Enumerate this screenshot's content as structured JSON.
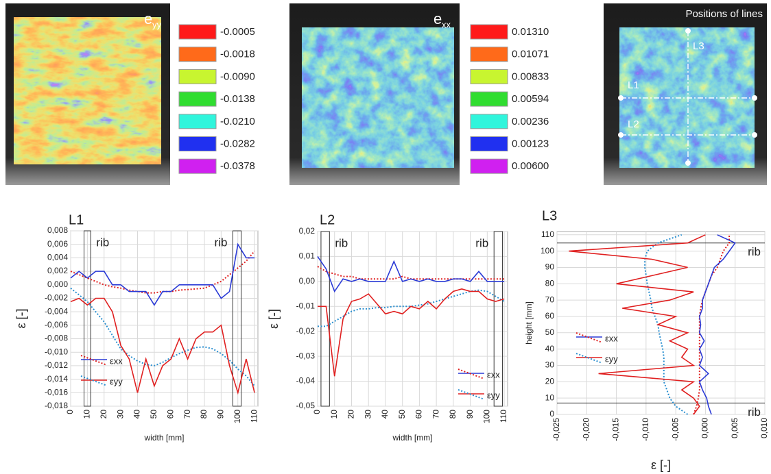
{
  "maps": [
    {
      "title": "e",
      "title_sub": "yy",
      "legend": {
        "colors": [
          "#ff1a1a",
          "#ff6a1a",
          "#c8f530",
          "#30dd30",
          "#30f5dc",
          "#2030f0",
          "#d020f0"
        ],
        "values": [
          -0.0005,
          -0.0018,
          {
            "value": -0.009,
            "label": "-0.0090"
          },
          -0.0138,
          {
            "value": -0.021,
            "label": "-0.0210"
          },
          -0.0282,
          -0.0378
        ]
      }
    },
    {
      "title": "e",
      "title_sub": "xx",
      "legend": {
        "colors": [
          "#ff1a1a",
          "#ff6a1a",
          "#c8f530",
          "#30dd30",
          "#30f5dc",
          "#2030f0",
          "#d020f0"
        ],
        "values": [
          {
            "value": 0.0131,
            "label": "0.01310"
          },
          0.01071,
          0.00833,
          0.00594,
          0.00236,
          0.00123,
          {
            "value": 0.006,
            "label": "0.00600"
          }
        ]
      }
    },
    {
      "title": "Positions of lines",
      "line_labels": [
        "L1",
        "L2",
        "L3"
      ]
    }
  ],
  "chart_data": [
    {
      "type": "line",
      "title": "L1",
      "x_label": "width [mm]",
      "y_label": "ε [-]",
      "grid": true,
      "x": [
        0,
        5,
        10,
        15,
        20,
        25,
        30,
        35,
        40,
        45,
        50,
        55,
        60,
        65,
        70,
        75,
        80,
        85,
        90,
        95,
        100,
        105,
        110
      ],
      "xlim": [
        0,
        112
      ],
      "xticks": [
        0,
        10,
        20,
        30,
        40,
        50,
        60,
        70,
        80,
        90,
        100,
        110
      ],
      "ylim": [
        -0.018,
        0.008
      ],
      "yticks": [
        {
          "value": 0.008,
          "label": "0,008"
        },
        {
          "value": 0.006,
          "label": "0,006"
        },
        {
          "value": 0.004,
          "label": "0,004"
        },
        {
          "value": 0.002,
          "label": "0,002"
        },
        {
          "value": 0,
          "label": "0,000"
        },
        {
          "value": -0.002,
          "label": "-0,002"
        },
        {
          "value": -0.004,
          "label": "-0,004"
        },
        {
          "value": -0.006,
          "label": "-0,006"
        },
        {
          "value": -0.008,
          "label": "-0,008"
        },
        {
          "value": -0.01,
          "label": "-0,010"
        },
        {
          "value": -0.012,
          "label": "-0,012"
        },
        {
          "value": -0.014,
          "label": "-0,014"
        },
        {
          "value": -0.016,
          "label": "-0,016"
        },
        {
          "value": -0.018,
          "label": "-0,018"
        }
      ],
      "ribs": [
        [
          8,
          12
        ],
        [
          97,
          102
        ]
      ],
      "annotations": [
        "rib",
        "rib"
      ],
      "series": [
        {
          "name": "εxx",
          "color": "#2b3bd6",
          "dotted_color": "#e02020",
          "values": [
            0.001,
            0.002,
            0.001,
            0.002,
            0.002,
            0,
            0,
            -0.001,
            -0.001,
            -0.001,
            -0.003,
            -0.001,
            -0.001,
            0,
            0,
            0,
            0,
            0,
            -0.002,
            -0.001,
            0.006,
            0.004,
            0.004
          ],
          "dotted_values": [
            0.002,
            0.0015,
            0.001,
            0.0005,
            0,
            -0.0003,
            -0.0005,
            -0.0008,
            -0.001,
            -0.0012,
            -0.0012,
            -0.001,
            -0.001,
            -0.0008,
            -0.0007,
            -0.0006,
            -0.0005,
            0,
            0.0005,
            0.0015,
            0.0025,
            0.0035,
            0.005
          ]
        },
        {
          "name": "εyy",
          "color": "#e02020",
          "dotted_color": "#2a8fd0",
          "values": [
            -0.0025,
            -0.002,
            -0.003,
            -0.002,
            -0.002,
            -0.004,
            -0.009,
            -0.011,
            -0.016,
            -0.011,
            -0.015,
            -0.012,
            -0.011,
            -0.008,
            -0.011,
            -0.008,
            -0.007,
            -0.007,
            -0.006,
            -0.012,
            -0.016,
            -0.011,
            -0.016
          ],
          "dotted_values": [
            -0.0005,
            -0.0015,
            -0.0025,
            -0.004,
            -0.0055,
            -0.0075,
            -0.0095,
            -0.0105,
            -0.0113,
            -0.0118,
            -0.012,
            -0.0115,
            -0.0108,
            -0.0102,
            -0.0097,
            -0.0093,
            -0.0092,
            -0.0095,
            -0.0102,
            -0.0112,
            -0.0125,
            -0.0135,
            -0.015
          ]
        }
      ]
    },
    {
      "type": "line",
      "title": "L2",
      "x_label": "width [mm]",
      "y_label": "ε [-]",
      "grid": true,
      "x": [
        0,
        5,
        10,
        15,
        20,
        25,
        30,
        35,
        40,
        45,
        50,
        55,
        60,
        65,
        70,
        75,
        80,
        85,
        90,
        95,
        100,
        105,
        110
      ],
      "xlim": [
        0,
        112
      ],
      "xticks": [
        0,
        10,
        20,
        30,
        40,
        50,
        60,
        70,
        80,
        90,
        100,
        110
      ],
      "ylim": [
        -0.05,
        0.02
      ],
      "yticks": [
        {
          "value": 0.02,
          "label": "0,02"
        },
        {
          "value": 0.01,
          "label": "0,01"
        },
        {
          "value": 0,
          "label": "0,00"
        },
        {
          "value": -0.01,
          "label": "-0,01"
        },
        {
          "value": -0.02,
          "label": "-0,02"
        },
        {
          "value": -0.03,
          "label": "-0,03"
        },
        {
          "value": -0.04,
          "label": "-0,04"
        },
        {
          "value": -0.05,
          "label": "-0,05"
        }
      ],
      "ribs": [
        [
          2,
          7
        ],
        [
          104,
          109
        ]
      ],
      "annotations": [
        "rib",
        "rib"
      ],
      "series": [
        {
          "name": "εxx",
          "color": "#2b3bd6",
          "dotted_color": "#e02020",
          "values": [
            0.01,
            0.005,
            -0.004,
            0.001,
            0,
            0.001,
            0,
            0,
            0,
            0.008,
            0,
            0.001,
            0,
            0.001,
            0,
            0,
            0.001,
            0.001,
            0,
            0.004,
            0,
            0,
            0
          ],
          "dotted_values": [
            0.006,
            0.004,
            0.003,
            0.002,
            0.002,
            0.001,
            0.001,
            0.001,
            0.001,
            0.001,
            0.002,
            0.001,
            0.001,
            0.001,
            0.001,
            0.001,
            0.001,
            0.001,
            0.001,
            0.001,
            0.001,
            0.001,
            0.001
          ]
        },
        {
          "name": "εyy",
          "color": "#e02020",
          "dotted_color": "#2a8fd0",
          "values": [
            -0.01,
            -0.01,
            -0.038,
            -0.015,
            -0.008,
            -0.007,
            -0.005,
            -0.009,
            -0.013,
            -0.012,
            -0.013,
            -0.01,
            -0.011,
            -0.008,
            -0.011,
            -0.007,
            -0.004,
            -0.003,
            -0.004,
            -0.004,
            -0.007,
            -0.008,
            -0.007
          ],
          "dotted_values": [
            -0.018,
            -0.018,
            -0.016,
            -0.014,
            -0.012,
            -0.011,
            -0.011,
            -0.0105,
            -0.0105,
            -0.01,
            -0.01,
            -0.01,
            -0.0095,
            -0.009,
            -0.008,
            -0.007,
            -0.006,
            -0.005,
            -0.004,
            -0.0035,
            -0.004,
            -0.006,
            -0.008
          ]
        }
      ]
    },
    {
      "type": "line",
      "title": "L3",
      "x_label": "ε [-]",
      "y_label": "height [mm]",
      "grid": true,
      "y": [
        0,
        5,
        10,
        15,
        20,
        25,
        30,
        35,
        40,
        45,
        50,
        55,
        60,
        65,
        70,
        75,
        80,
        85,
        90,
        95,
        100,
        105,
        110
      ],
      "ylim": [
        0,
        112
      ],
      "yticks": [
        0,
        10,
        20,
        30,
        40,
        50,
        60,
        70,
        80,
        90,
        100,
        110
      ],
      "xlim": [
        -0.025,
        0.01
      ],
      "xticks": [
        {
          "value": -0.025,
          "label": "-0,025"
        },
        {
          "value": -0.02,
          "label": "-0,020"
        },
        {
          "value": -0.015,
          "label": "-0,015"
        },
        {
          "value": -0.01,
          "label": "-0,010"
        },
        {
          "value": -0.005,
          "label": "-0,005"
        },
        {
          "value": 0,
          "label": "0,000"
        },
        {
          "value": 0.005,
          "label": "0,005"
        },
        {
          "value": 0.01,
          "label": "0,010"
        }
      ],
      "rib_lines": [
        105,
        7
      ],
      "annotations": [
        "rib",
        "rib"
      ],
      "series": [
        {
          "name": "εxx",
          "color": "#2b3bd6",
          "dotted_color": "#e02020",
          "values": [
            0.001,
            0.0005,
            0.0002,
            -0.0005,
            -0.001,
            0.0005,
            -0.001,
            -0.0005,
            -0.001,
            -0.0002,
            -0.001,
            -0.0008,
            -0.001,
            -0.0005,
            -0.0005,
            0,
            0.0005,
            0.001,
            0.0015,
            0.003,
            0.004,
            0.005,
            0.002
          ],
          "dotted_values": [
            -0.002,
            -0.0015,
            -0.0012,
            -0.001,
            -0.001,
            -0.001,
            -0.001,
            -0.001,
            -0.001,
            -0.001,
            -0.001,
            -0.001,
            -0.001,
            -0.0008,
            -0.0005,
            0,
            0.0005,
            0.001,
            0.002,
            0.0025,
            0.003,
            0.004,
            0.004
          ]
        },
        {
          "name": "εyy",
          "color": "#e02020",
          "dotted_color": "#2a8fd0",
          "values": [
            -0.002,
            -0.001,
            -0.002,
            -0.004,
            -0.002,
            -0.018,
            -0.002,
            -0.004,
            -0.003,
            -0.006,
            -0.003,
            -0.008,
            -0.005,
            -0.014,
            -0.006,
            -0.002,
            -0.015,
            -0.009,
            -0.003,
            -0.009,
            -0.023,
            -0.003,
            0
          ],
          "dotted_values": [
            -0.003,
            -0.005,
            -0.006,
            -0.0065,
            -0.007,
            -0.007,
            -0.007,
            -0.007,
            -0.0072,
            -0.0075,
            -0.0078,
            -0.008,
            -0.0085,
            -0.009,
            -0.0092,
            -0.0095,
            -0.0098,
            -0.01,
            -0.0102,
            -0.0102,
            -0.0098,
            -0.008,
            -0.004
          ]
        }
      ]
    }
  ]
}
